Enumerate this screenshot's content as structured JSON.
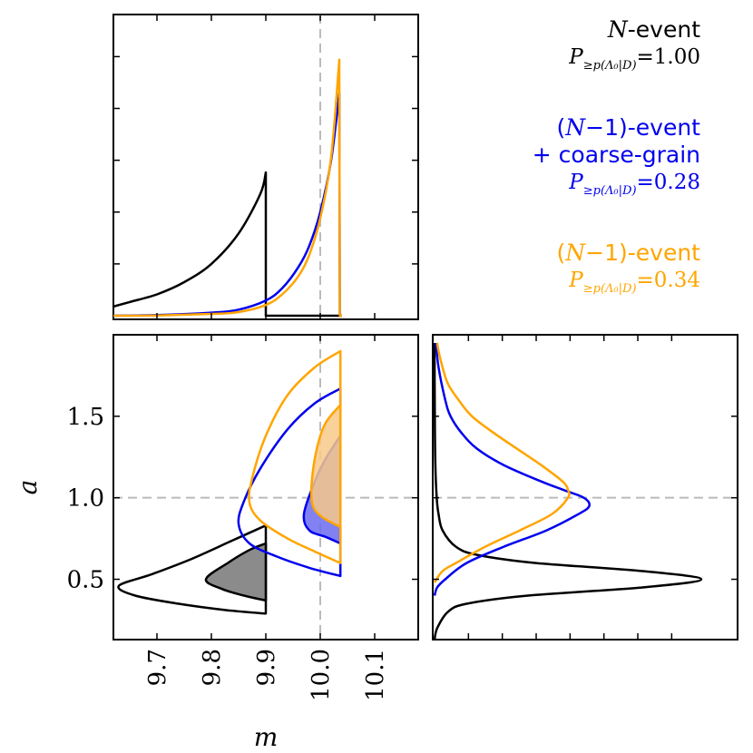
{
  "chart_data": {
    "type": "corner-plot",
    "colors": {
      "n_event": "#000000",
      "coarse_grain": "#0000ee",
      "n_minus_1": "#ffa500",
      "reference": "#bbbbbb",
      "fill_black": "#777777",
      "fill_blue": "#6b6bf0",
      "fill_orange": "#f7c98a",
      "fill_overlap": "#b59080"
    },
    "x_axis": {
      "label": "m",
      "lim": [
        9.62,
        10.18
      ],
      "ticks": [
        9.7,
        9.8,
        9.9,
        10.0,
        10.1
      ],
      "tick_labels": [
        "9.7",
        "9.8",
        "9.9",
        "10.0",
        "10.1"
      ]
    },
    "y_axis": {
      "label": "a",
      "lim": [
        0.13,
        2.0
      ],
      "ticks": [
        0.5,
        1.0,
        1.5
      ],
      "tick_labels": [
        "0.5",
        "1.0",
        "1.5"
      ]
    },
    "reference": {
      "m": 10.0,
      "a": 1.0
    },
    "marginal_m": {
      "series": [
        {
          "name": "N-event",
          "color": "#000000",
          "m": [
            9.62,
            9.65,
            9.7,
            9.75,
            9.8,
            9.85,
            9.89,
            9.9,
            9.9,
            10.04
          ],
          "density": [
            0.03,
            0.045,
            0.07,
            0.11,
            0.17,
            0.27,
            0.4,
            0.47,
            0.0,
            0.0
          ]
        },
        {
          "name": "(N-1)-event + coarse-grain",
          "color": "#0000ee",
          "m": [
            9.62,
            9.7,
            9.8,
            9.85,
            9.9,
            9.93,
            9.96,
            9.98,
            10.0,
            10.02,
            10.035,
            10.036,
            10.04
          ],
          "density": [
            0.0,
            0.002,
            0.01,
            0.02,
            0.05,
            0.09,
            0.16,
            0.23,
            0.34,
            0.51,
            0.73,
            0.0,
            0.0
          ]
        },
        {
          "name": "(N-1)-event",
          "color": "#ffa500",
          "m": [
            9.62,
            9.7,
            9.8,
            9.85,
            9.9,
            9.93,
            9.96,
            9.98,
            10.0,
            10.02,
            10.035,
            10.036,
            10.04
          ],
          "density": [
            0.0,
            0.001,
            0.006,
            0.012,
            0.035,
            0.07,
            0.13,
            0.2,
            0.32,
            0.52,
            0.84,
            0.0,
            0.0
          ]
        }
      ]
    },
    "marginal_a": {
      "series": [
        {
          "name": "N-event",
          "color": "#000000",
          "a": [
            0.13,
            0.2,
            0.3,
            0.35,
            0.4,
            0.45,
            0.5,
            0.55,
            0.6,
            0.65,
            0.7,
            0.8,
            0.9,
            1.0,
            1.2,
            1.5,
            1.95
          ],
          "density": [
            0.0,
            0.01,
            0.05,
            0.12,
            0.35,
            0.78,
            1.0,
            0.78,
            0.38,
            0.16,
            0.08,
            0.03,
            0.015,
            0.008,
            0.003,
            0.001,
            0.0
          ]
        },
        {
          "name": "(N-1)-event + coarse-grain",
          "color": "#0000ee",
          "a": [
            0.4,
            0.45,
            0.5,
            0.6,
            0.7,
            0.8,
            0.9,
            0.95,
            1.0,
            1.05,
            1.1,
            1.2,
            1.3,
            1.4,
            1.5,
            1.6,
            1.8,
            1.95
          ],
          "density": [
            0.0,
            0.01,
            0.04,
            0.12,
            0.26,
            0.42,
            0.54,
            0.58,
            0.56,
            0.48,
            0.4,
            0.26,
            0.16,
            0.1,
            0.06,
            0.04,
            0.015,
            0.005
          ]
        },
        {
          "name": "(N-1)-event",
          "color": "#ffa500",
          "a": [
            0.48,
            0.55,
            0.6,
            0.7,
            0.8,
            0.9,
            1.0,
            1.05,
            1.1,
            1.2,
            1.3,
            1.4,
            1.5,
            1.6,
            1.7,
            1.8,
            1.9,
            1.95
          ],
          "density": [
            0.0,
            0.03,
            0.08,
            0.19,
            0.32,
            0.44,
            0.5,
            0.5,
            0.48,
            0.4,
            0.31,
            0.22,
            0.14,
            0.09,
            0.05,
            0.03,
            0.015,
            0.01
          ]
        }
      ]
    },
    "joint": {
      "contours": [
        {
          "name": "N-event outer",
          "color": "#000000",
          "filled": false,
          "points": [
            [
              9.9,
              0.83
            ],
            [
              9.84,
              0.74
            ],
            [
              9.76,
              0.62
            ],
            [
              9.69,
              0.53
            ],
            [
              9.63,
              0.46
            ],
            [
              9.66,
              0.4
            ],
            [
              9.74,
              0.35
            ],
            [
              9.83,
              0.31
            ],
            [
              9.9,
              0.29
            ]
          ]
        },
        {
          "name": "N-event inner",
          "color": "#000000",
          "filled": true,
          "points": [
            [
              9.9,
              0.72
            ],
            [
              9.87,
              0.68
            ],
            [
              9.83,
              0.6
            ],
            [
              9.79,
              0.5
            ],
            [
              9.82,
              0.44
            ],
            [
              9.86,
              0.4
            ],
            [
              9.9,
              0.37
            ]
          ]
        },
        {
          "name": "coarse-grain outer",
          "color": "#0000ee",
          "filled": false,
          "points": [
            [
              10.037,
              1.67
            ],
            [
              9.99,
              1.58
            ],
            [
              9.94,
              1.42
            ],
            [
              9.89,
              1.18
            ],
            [
              9.86,
              0.98
            ],
            [
              9.85,
              0.84
            ],
            [
              9.87,
              0.72
            ],
            [
              9.92,
              0.64
            ],
            [
              9.98,
              0.57
            ],
            [
              10.037,
              0.52
            ]
          ]
        },
        {
          "name": "coarse-grain inner",
          "color": "#0000ee",
          "filled": true,
          "points": [
            [
              10.037,
              1.38
            ],
            [
              10.01,
              1.24
            ],
            [
              9.99,
              1.1
            ],
            [
              9.97,
              0.9
            ],
            [
              9.98,
              0.8
            ],
            [
              10.01,
              0.76
            ],
            [
              10.037,
              0.72
            ]
          ]
        },
        {
          "name": "(N-1)-event outer",
          "color": "#ffa500",
          "filled": false,
          "points": [
            [
              10.037,
              1.9
            ],
            [
              9.99,
              1.8
            ],
            [
              9.94,
              1.63
            ],
            [
              9.9,
              1.38
            ],
            [
              9.875,
              1.12
            ],
            [
              9.87,
              0.97
            ],
            [
              9.89,
              0.86
            ],
            [
              9.94,
              0.75
            ],
            [
              9.99,
              0.67
            ],
            [
              10.037,
              0.6
            ]
          ]
        },
        {
          "name": "(N-1)-event inner",
          "color": "#ffa500",
          "filled": true,
          "points": [
            [
              10.037,
              1.57
            ],
            [
              10.01,
              1.46
            ],
            [
              9.995,
              1.32
            ],
            [
              9.985,
              1.12
            ],
            [
              9.985,
              0.97
            ],
            [
              10.0,
              0.89
            ],
            [
              10.037,
              0.82
            ]
          ]
        }
      ]
    }
  },
  "legend": {
    "n_event": {
      "name_var": "N",
      "name_rest": "-event",
      "p_label": "P",
      "p_sub": "≥p(Λ₀|D)",
      "p_value": "=1.00"
    },
    "coarse_grain": {
      "name_a": "(",
      "name_var": "N",
      "name_b": "−1)-event",
      "line2": "+ coarse-grain",
      "p_label": "P",
      "p_sub": "≥p(Λ₀|D)",
      "p_value": "=0.28"
    },
    "n_minus_1": {
      "name_a": "(",
      "name_var": "N",
      "name_b": "−1)-event",
      "p_label": "P",
      "p_sub": "≥p(Λ₀|D)",
      "p_value": "=0.34"
    }
  }
}
